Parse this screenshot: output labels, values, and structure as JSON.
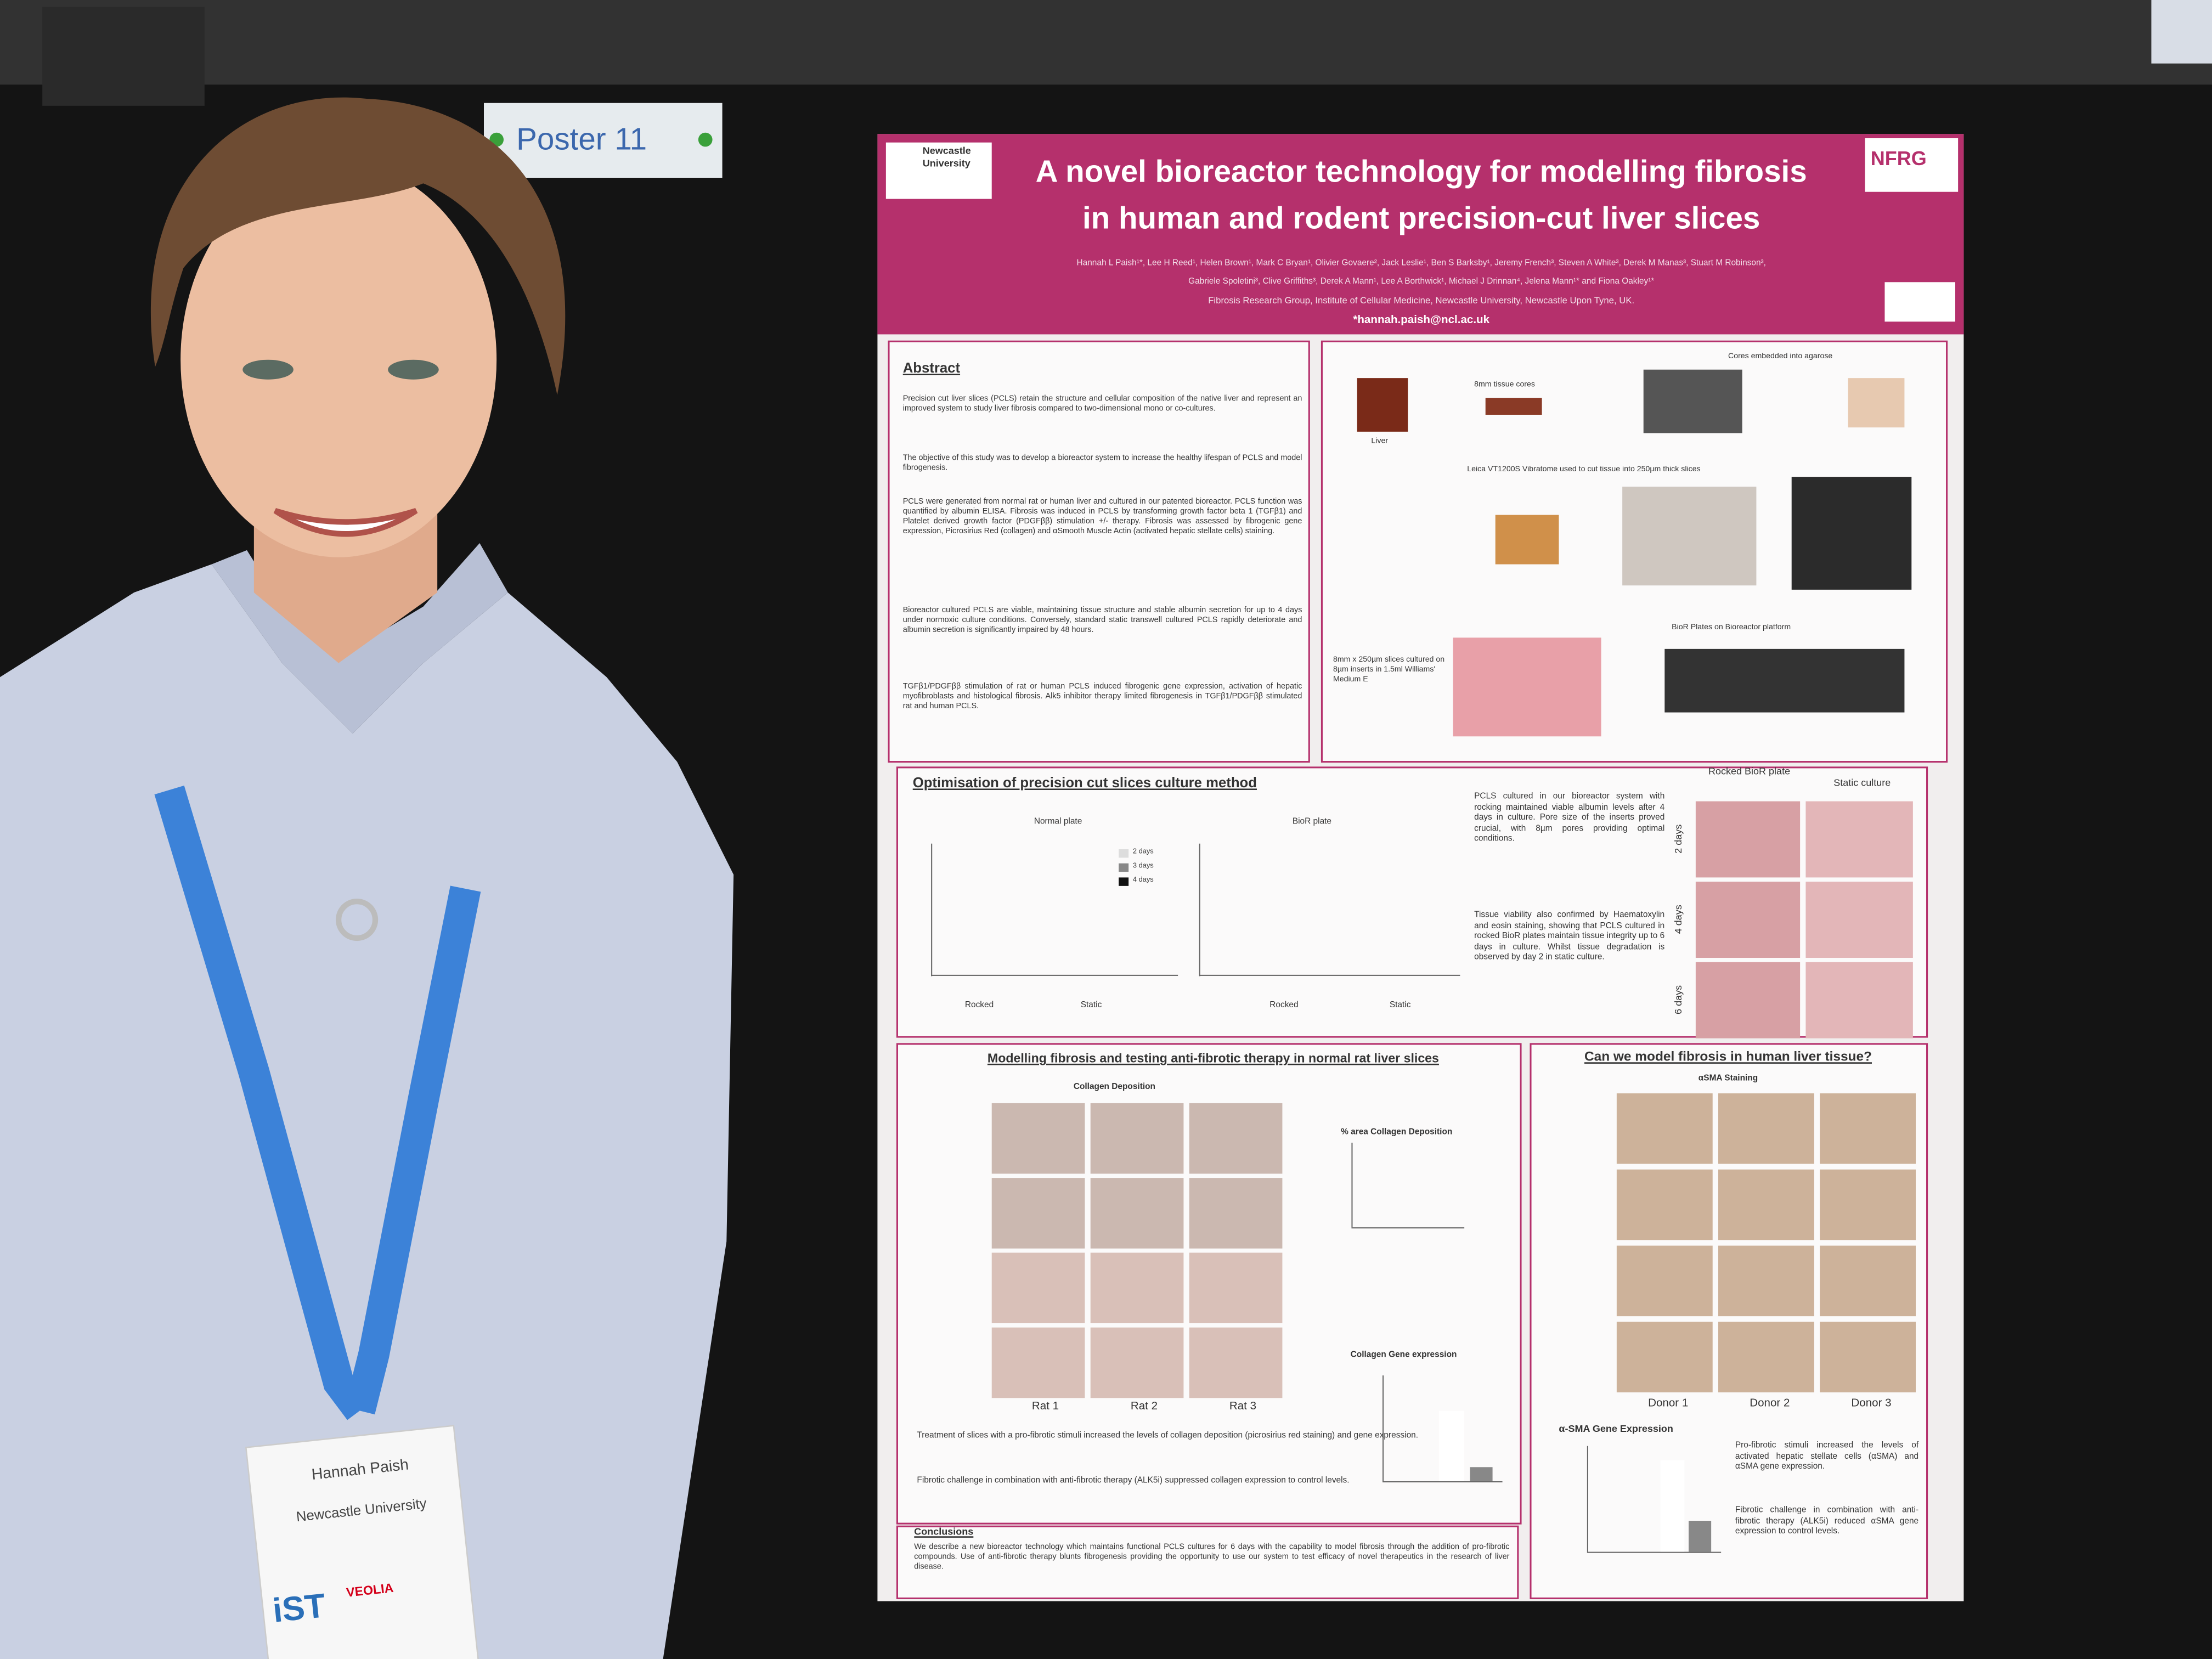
{
  "sign": "Poster 11",
  "badge": {
    "name": "Hannah Paish",
    "org": "Newcastle University",
    "logos": [
      "iST",
      "VEOLIA"
    ]
  },
  "poster": {
    "logos": [
      "Newcastle University",
      "NFRG"
    ],
    "title": [
      "A novel bioreactor technology for modelling fibrosis",
      "in human and rodent precision-cut liver slices"
    ],
    "authors": [
      "Hannah L Paish¹*, Lee H Reed¹, Helen Brown¹, Mark C Bryan¹, Olivier Govaere², Jack Leslie¹, Ben S Barksby¹, Jeremy French³, Steven A White³, Derek M Manas³, Stuart M Robinson³,",
      "Gabriele Spoletini³, Clive Griffiths³, Derek A Mann¹, Lee A Borthwick¹, Michael J Drinnan⁴, Jelena Mann¹* and Fiona Oakley¹*"
    ],
    "affiliation": "Fibrosis Research Group, Institute of Cellular Medicine, Newcastle University, Newcastle Upon Tyne, UK.",
    "email": "*hannah.paish@ncl.ac.uk",
    "abstract": {
      "heading": "Abstract",
      "paragraphs": [
        "Precision cut liver slices (PCLS) retain the structure and cellular composition of the native liver and represent an improved system to study liver fibrosis compared to two-dimensional mono or co-cultures.",
        "The objective of this study was to develop a bioreactor system to increase the healthy lifespan of PCLS and model fibrogenesis.",
        "PCLS were generated from normal rat or human liver and cultured in our patented bioreactor. PCLS function was quantified by albumin ELISA. Fibrosis was induced in PCLS by transforming growth factor beta 1 (TGFβ1) and Platelet derived growth factor (PDGFββ) stimulation +/- therapy. Fibrosis was assessed by fibrogenic gene expression, Picrosirius Red (collagen) and αSmooth Muscle Actin (activated hepatic stellate cells) staining.",
        "Bioreactor cultured PCLS are viable, maintaining tissue structure and stable albumin secretion for up to 4 days under normoxic culture conditions. Conversely, standard static transwell cultured PCLS rapidly deteriorate and albumin secretion is significantly impaired by 48 hours.",
        "TGFβ1/PDGFββ stimulation of rat or human PCLS induced fibrogenic gene expression, activation of hepatic myofibroblasts and histological fibrosis. Alk5 inhibitor therapy limited fibrogenesis in TGFβ1/PDGFββ stimulated rat and human PCLS."
      ]
    },
    "workflow": [
      "Liver",
      "8mm tissue cores",
      "Cores embedded into agarose",
      "Leica VT1200S Vibratome used to cut tissue into 250µm thick slices",
      "8mm x 250µm slices cultured on 8µm inserts in 1.5ml Williams' Medium E",
      "BioR Plates on Bioreactor platform"
    ],
    "optimisation": {
      "heading": "Optimisation of precision cut slices culture method",
      "charts": [
        "Normal plate",
        "BioR plate"
      ],
      "legend": [
        "2 days",
        "3 days",
        "4 days"
      ],
      "groups": [
        "Rocked",
        "Static"
      ],
      "paragraphs": [
        "PCLS cultured in our bioreactor system with rocking maintained viable albumin levels after 4 days in culture. Pore size of the inserts proved crucial, with 8µm pores providing optimal conditions.",
        "Tissue viability also confirmed by Haematoxylin and eosin staining, showing that PCLS cultured in rocked BioR plates maintain tissue integrity up to 6 days in culture. Whilst tissue degradation is observed by day 2 in static culture."
      ],
      "columns": [
        "Rocked BioR plate",
        "Static culture"
      ],
      "rows": [
        "2 days",
        "4 days",
        "6 days"
      ]
    },
    "rat": {
      "heading": "Modelling fibrosis and testing anti-fibrotic therapy in normal rat liver slices",
      "subheading": "Collagen Deposition",
      "columns": [
        "Rat 1",
        "Rat 2",
        "Rat 3"
      ],
      "chart_titles": [
        "% area Collagen Deposition",
        "Collagen Gene expression"
      ],
      "paragraphs": [
        "Treatment of slices with a pro-fibrotic stimuli increased the levels of collagen deposition (picrosirius red staining) and gene expression.",
        "Fibrotic challenge in combination with anti-fibrotic therapy (ALK5i) suppressed collagen expression to control levels."
      ]
    },
    "human": {
      "heading": "Can we model fibrosis in human liver tissue?",
      "subheading": "αSMA Staining",
      "columns": [
        "Donor 1",
        "Donor 2",
        "Donor 3"
      ],
      "chart_title": "α-SMA Gene Expression",
      "paragraphs": [
        "Pro-fibrotic stimuli increased the levels of activated hepatic stellate cells (αSMA) and αSMA gene expression.",
        "Fibrotic challenge in combination with anti-fibrotic therapy (ALK5i) reduced αSMA gene expression to control levels."
      ]
    },
    "conclusions": {
      "heading": "Conclusions",
      "text": "We describe a new bioreactor technology which maintains functional PCLS cultures for 6 days with the capability to model fibrosis through the addition of pro-fibrotic compounds. Use of anti-fibrotic therapy blunts fibrogenesis providing the opportunity to use our system to test efficacy of novel therapeutics in the research of liver disease."
    }
  }
}
